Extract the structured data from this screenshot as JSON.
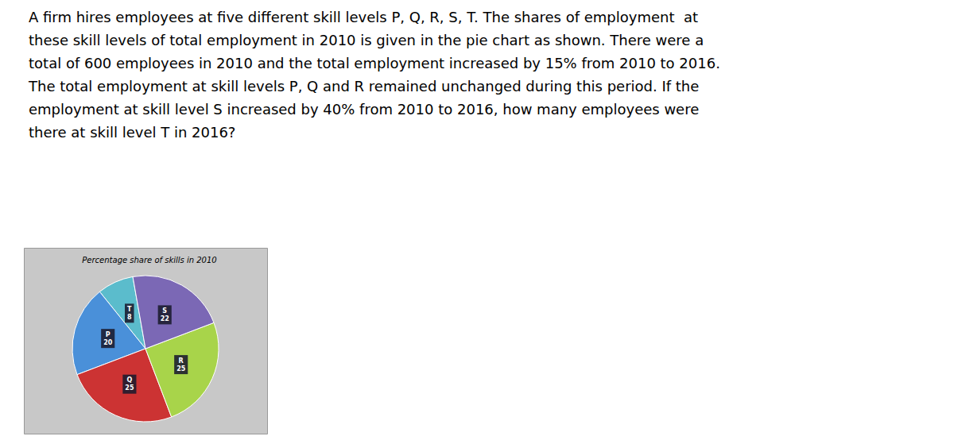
{
  "chart_data": {
    "type": "pie",
    "title": "Percentage share of skills in 2010",
    "categories": [
      "T",
      "P",
      "Q",
      "R",
      "S"
    ],
    "values": [
      8,
      20,
      25,
      25,
      22
    ],
    "colors": [
      "#5bbccc",
      "#4a90d9",
      "#cc3333",
      "#a8d44a",
      "#7b68b5"
    ],
    "data_labels": true,
    "annotations": [
      "A firm hires employees at five different skill levels P, Q, R, S, T. The shares of employment  at",
      "these skill levels of total employment in 2010 is given in the pie chart as shown. There were a",
      "total of 600 employees in 2010 and the total employment increased by 15% from 2010 to 2016.",
      "The total employment at skill levels P, Q and R remained unchanged during this period. If the",
      "employment at skill level S increased by 40% from 2010 to 2016, how many employees were",
      "there at skill level T in 2016?"
    ]
  }
}
